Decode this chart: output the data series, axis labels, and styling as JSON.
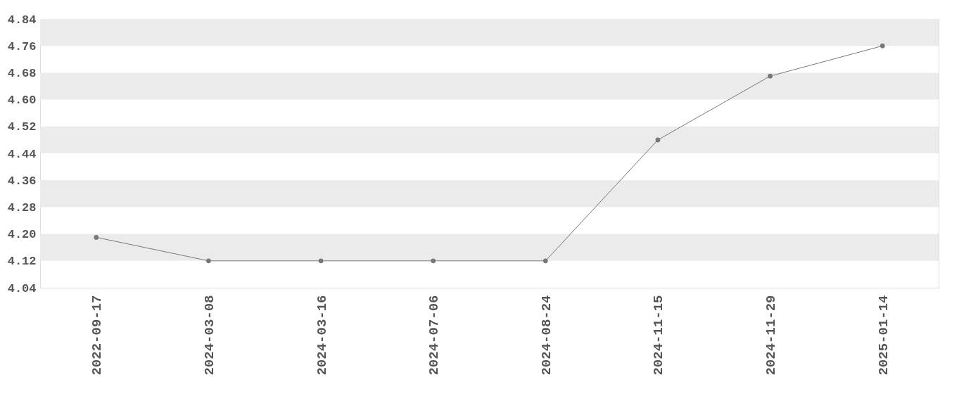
{
  "chart_data": {
    "type": "line",
    "categories": [
      "2022-09-17",
      "2024-03-08",
      "2024-03-16",
      "2024-07-06",
      "2024-08-24",
      "2024-11-15",
      "2024-11-29",
      "2025-01-14"
    ],
    "series": [
      {
        "color": "#777777",
        "values": [
          4.19,
          4.12,
          4.12,
          4.12,
          4.12,
          4.48,
          4.67,
          4.76
        ]
      }
    ],
    "ylim": [
      4.04,
      4.84
    ],
    "yticks": [
      4.04,
      4.12,
      {
        "value": 4.2,
        "label": "4.20"
      },
      4.28,
      4.36,
      4.44,
      4.52,
      {
        "value": 4.6,
        "label": "4.60"
      },
      4.68,
      4.76,
      4.84
    ],
    "bands": [
      {
        "axis": "y",
        "from": 4.76,
        "to": 4.84,
        "color": "#ebebeb"
      },
      {
        "axis": "y",
        "from": 4.6,
        "to": 4.68,
        "color": "#ebebeb"
      },
      {
        "axis": "y",
        "from": 4.44,
        "to": 4.52,
        "color": "#ebebeb"
      },
      {
        "axis": "y",
        "from": 4.28,
        "to": 4.36,
        "color": "#ebebeb"
      },
      {
        "axis": "y",
        "from": 4.12,
        "to": 4.2,
        "color": "#ebebeb"
      }
    ],
    "marker": "circle",
    "grid": false
  }
}
